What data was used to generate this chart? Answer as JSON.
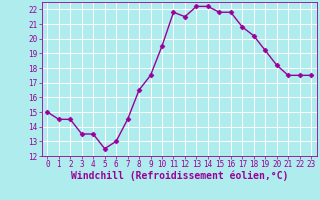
{
  "x": [
    0,
    1,
    2,
    3,
    4,
    5,
    6,
    7,
    8,
    9,
    10,
    11,
    12,
    13,
    14,
    15,
    16,
    17,
    18,
    19,
    20,
    21,
    22,
    23
  ],
  "y": [
    15,
    14.5,
    14.5,
    13.5,
    13.5,
    12.5,
    13,
    14.5,
    16.5,
    17.5,
    19.5,
    21.8,
    21.5,
    22.2,
    22.2,
    21.8,
    21.8,
    20.8,
    20.2,
    19.2,
    18.2,
    17.5,
    17.5,
    17.5
  ],
  "line_color": "#990099",
  "marker": "D",
  "marker_size": 2.5,
  "bg_color": "#aeeced",
  "grid_color": "#c8e8e8",
  "xlabel": "Windchill (Refroidissement éolien,°C)",
  "xlabel_color": "#990099",
  "tick_color": "#990099",
  "ylim": [
    12,
    22.5
  ],
  "xlim": [
    -0.5,
    23.5
  ],
  "yticks": [
    12,
    13,
    14,
    15,
    16,
    17,
    18,
    19,
    20,
    21,
    22
  ],
  "xticks": [
    0,
    1,
    2,
    3,
    4,
    5,
    6,
    7,
    8,
    9,
    10,
    11,
    12,
    13,
    14,
    15,
    16,
    17,
    18,
    19,
    20,
    21,
    22,
    23
  ],
  "tick_fontsize": 5.5,
  "xlabel_fontsize": 7,
  "line_width": 1.0
}
